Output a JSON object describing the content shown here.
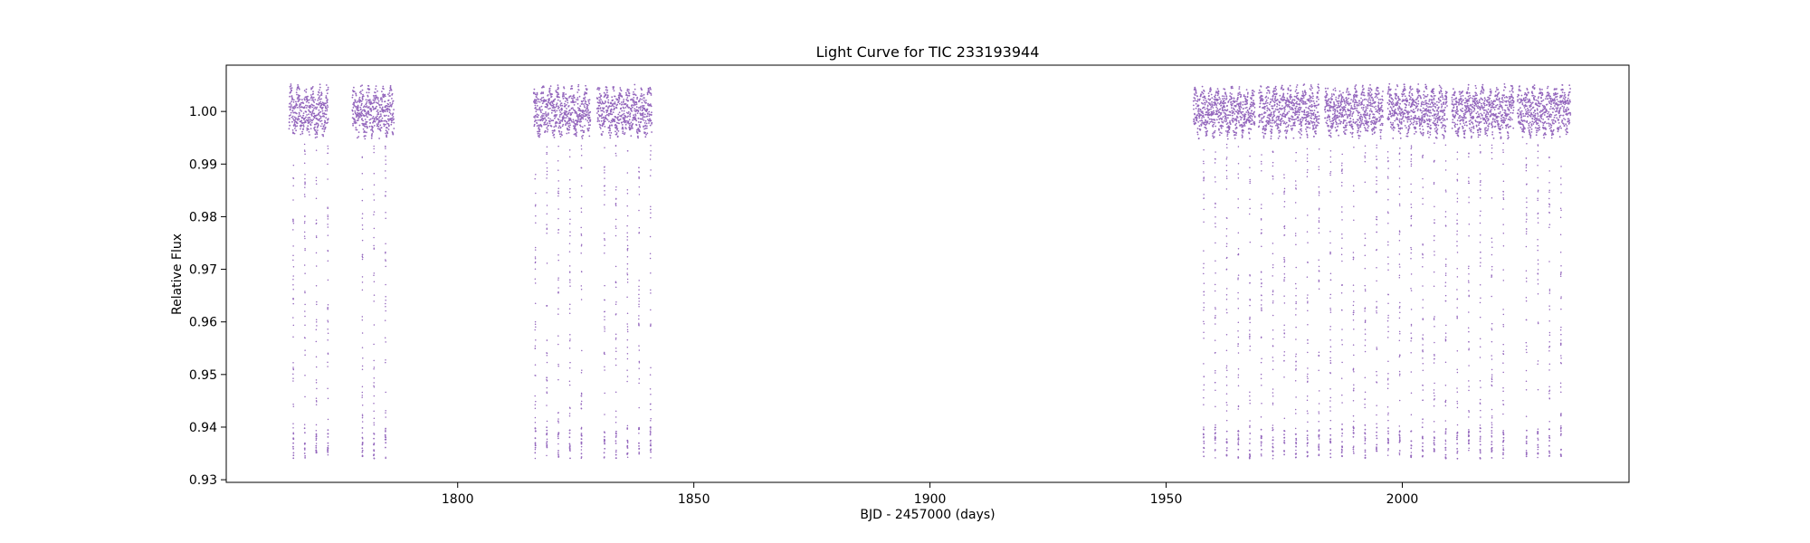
{
  "chart_data": {
    "type": "scatter",
    "title": "Light Curve for TIC 233193944",
    "xlabel": "BJD - 2457000 (days)",
    "ylabel": "Relative Flux",
    "xlim": [
      1751,
      2048
    ],
    "ylim": [
      0.9295,
      1.0088
    ],
    "xticks": [
      1800,
      1850,
      1900,
      1950,
      2000
    ],
    "yticks": [
      0.93,
      0.94,
      0.95,
      0.96,
      0.97,
      0.98,
      0.99,
      1.0
    ],
    "ytick_labels": [
      "0.93",
      "0.94",
      "0.95",
      "0.96",
      "0.97",
      "0.98",
      "0.99",
      "1.00"
    ],
    "grid": false,
    "point_color": "#9467bd",
    "segments": [
      {
        "start": 1764.3,
        "end": 1772.6
      },
      {
        "start": 1777.7,
        "end": 1786.5
      },
      {
        "start": 1816.1,
        "end": 1828.1
      },
      {
        "start": 1829.5,
        "end": 1841.1
      },
      {
        "start": 1955.8,
        "end": 1968.8
      },
      {
        "start": 1969.6,
        "end": 1982.4
      },
      {
        "start": 1983.6,
        "end": 1995.9
      },
      {
        "start": 1996.9,
        "end": 2009.5
      },
      {
        "start": 2010.5,
        "end": 2023.6
      },
      {
        "start": 2024.4,
        "end": 2035.6
      }
    ],
    "baseline_flux": 1.0,
    "out_of_eclipse_scatter": [
      0.994,
      1.004
    ],
    "eclipse_depth_min": 0.934,
    "eclipse_period_days": 2.44,
    "eclipse_first_epoch": 1765.2
  }
}
